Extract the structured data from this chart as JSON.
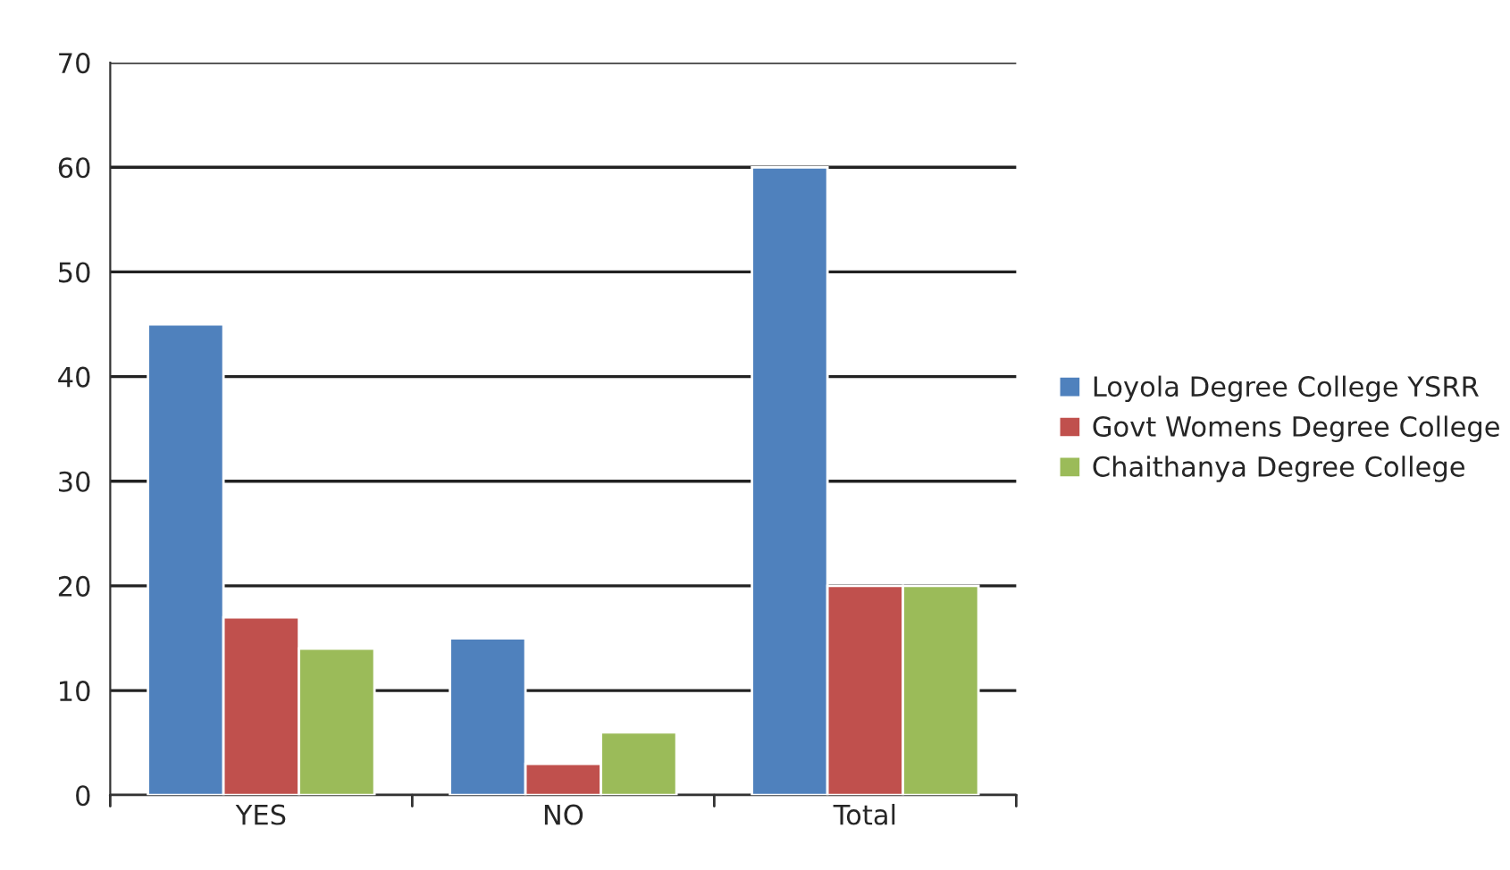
{
  "chart_data": {
    "type": "bar",
    "categories": [
      "YES",
      "NO",
      "Total"
    ],
    "series": [
      {
        "name": "Loyola Degree College YSRR",
        "color": "#4f81bd",
        "values": [
          45,
          15,
          60
        ]
      },
      {
        "name": "Govt Womens Degree College",
        "color": "#c0504d",
        "values": [
          17,
          3,
          20
        ]
      },
      {
        "name": "Chaithanya Degree College",
        "color": "#9bbb59",
        "values": [
          14,
          6,
          20
        ]
      }
    ],
    "ylim": [
      0,
      70
    ],
    "yticks": [
      0,
      10,
      20,
      30,
      40,
      50,
      60,
      70
    ],
    "grid": "y",
    "legend": "right"
  }
}
